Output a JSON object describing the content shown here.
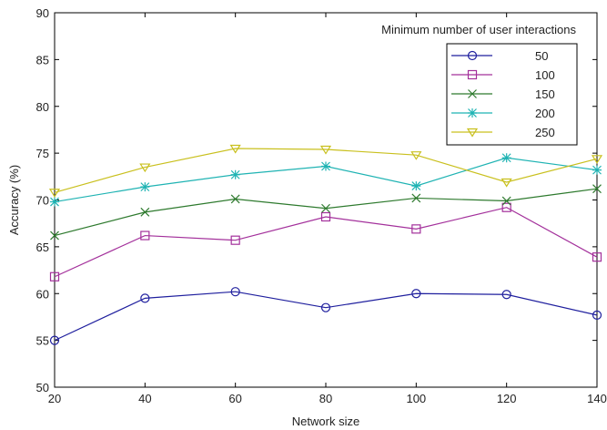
{
  "chart_data": {
    "type": "line",
    "xlabel": "Network size",
    "ylabel": "Accuracy (%)",
    "x": [
      20,
      40,
      60,
      80,
      100,
      120,
      140
    ],
    "xlim": [
      20,
      140
    ],
    "ylim": [
      50,
      90
    ],
    "xticks": [
      "20",
      "40",
      "60",
      "80",
      "100",
      "120",
      "140"
    ],
    "yticks": [
      "50",
      "55",
      "60",
      "65",
      "70",
      "75",
      "80",
      "85",
      "90"
    ],
    "grid": false,
    "legend": {
      "title": "Minimum number of user interactions",
      "position": "top-right"
    },
    "series": [
      {
        "name": "50",
        "marker": "circle",
        "color": "#1f1f9e",
        "values": [
          55.0,
          59.5,
          60.2,
          58.5,
          60.0,
          59.9,
          57.7
        ]
      },
      {
        "name": "100",
        "marker": "square",
        "color": "#a3309b",
        "values": [
          61.8,
          66.2,
          65.7,
          68.2,
          66.9,
          69.2,
          63.9
        ]
      },
      {
        "name": "150",
        "marker": "x",
        "color": "#2e7a2e",
        "values": [
          66.2,
          68.7,
          70.1,
          69.1,
          70.2,
          69.9,
          71.2
        ]
      },
      {
        "name": "200",
        "marker": "asterisk",
        "color": "#1fb3b3",
        "values": [
          69.8,
          71.4,
          72.7,
          73.6,
          71.5,
          74.5,
          73.2
        ]
      },
      {
        "name": "250",
        "marker": "triangle-down",
        "color": "#c9c01e",
        "values": [
          70.8,
          73.5,
          75.5,
          75.4,
          74.8,
          71.9,
          74.4
        ]
      }
    ]
  }
}
